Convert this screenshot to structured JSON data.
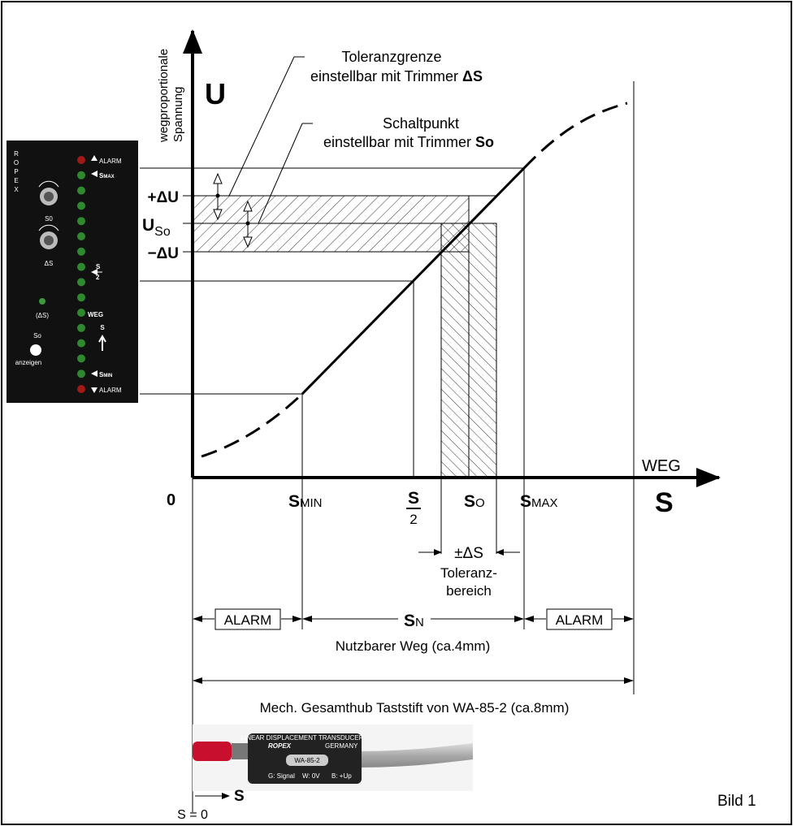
{
  "axis": {
    "y_label": [
      "wegproportionale",
      "Spannung"
    ],
    "y_symbol": "U",
    "x_label": "WEG",
    "x_symbol": "S",
    "origin": "0"
  },
  "annotations": {
    "tolerance_limit": {
      "line1": "Toleranzgrenze",
      "line2": "einstellbar mit Trimmer",
      "trimmer": "ΔS"
    },
    "switch_point": {
      "line1": "Schaltpunkt",
      "line2": "einstellbar mit Trimmer",
      "trimmer": "So"
    }
  },
  "y_levels": {
    "plus": "+ΔU",
    "switch": {
      "label": "U",
      "sub": "So"
    },
    "minus": "−ΔU"
  },
  "x_marks": {
    "min": {
      "label": "S",
      "sub": "MIN"
    },
    "half": {
      "label": "S",
      "denominator": "2"
    },
    "switch": {
      "label": "S",
      "sub": "O"
    },
    "max": {
      "label": "S",
      "sub": "MAX"
    }
  },
  "tolerance": {
    "label": "±ΔS",
    "text": [
      "Toleranz-",
      "bereich"
    ]
  },
  "ranges": {
    "alarm_left": "ALARM",
    "useful": {
      "label": "S",
      "sub": "N"
    },
    "alarm_right": "ALARM",
    "useful_text": "Nutzbarer Weg (ca.4mm)",
    "total_text": "Mech. Gesamthub Taststift von WA-85-2 (ca.8mm)"
  },
  "panel": {
    "brand": "ROPEX",
    "alarm_top": "ALARM",
    "smax": {
      "label": "S",
      "sub": "MAX"
    },
    "knob1": "S0",
    "knob2": "ΔS",
    "half": {
      "label": "S",
      "denominator": "2"
    },
    "delta_led": "(ΔS)",
    "weg": "WEG",
    "weg_s": "S",
    "show": {
      "label": "So",
      "button": "anzeigen"
    },
    "smin": {
      "label": "S",
      "sub": "MIN"
    },
    "alarm_bottom": "ALARM"
  },
  "sensor": {
    "type": "LINEAR DISPLACEMENT TRANSDUCER",
    "brand": "ROPEX",
    "origin": "GERMANY",
    "model": "WA-85-2",
    "pins": [
      "G: Signal",
      "W: 0V",
      "B: +Up"
    ]
  },
  "footer": {
    "direction": "S",
    "zero": "S = 0",
    "figure": "Bild 1"
  }
}
